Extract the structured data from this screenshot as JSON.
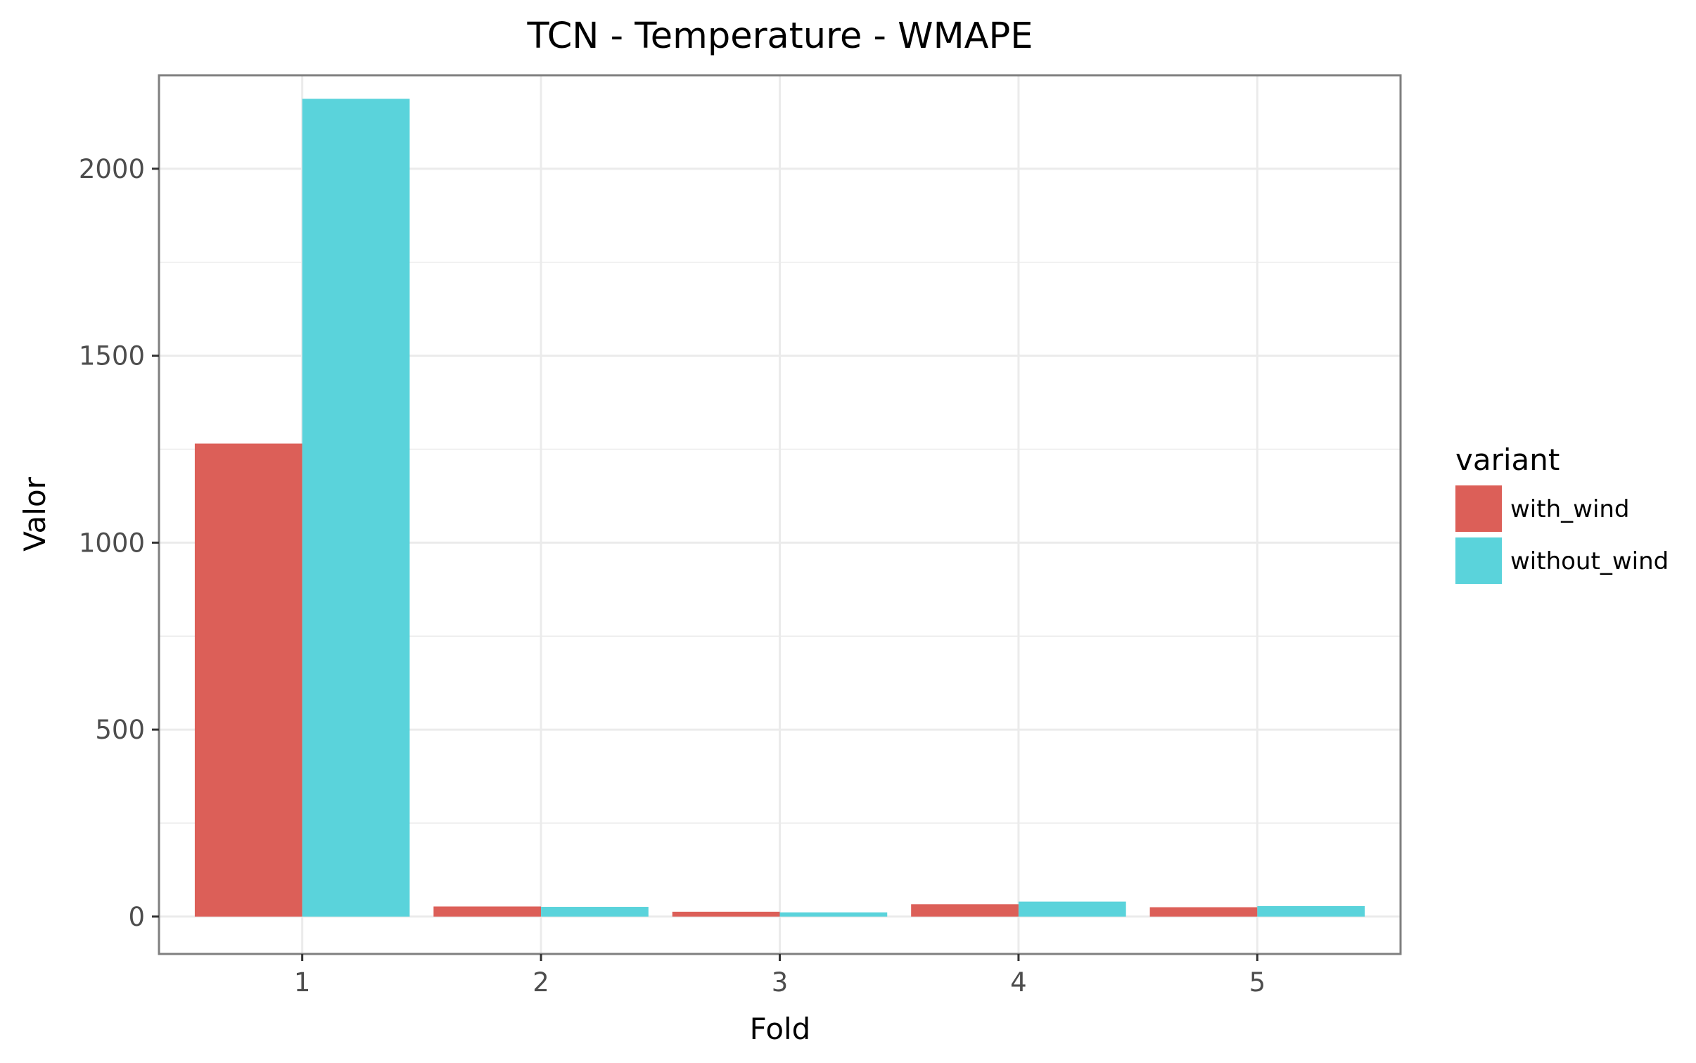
{
  "chart_data": {
    "type": "bar",
    "title": "TCN - Temperature - WMAPE",
    "xlabel": "Fold",
    "ylabel": "Valor",
    "categories": [
      "1",
      "2",
      "3",
      "4",
      "5"
    ],
    "ylim": [
      -100,
      2250
    ],
    "yticks": [
      0,
      500,
      1000,
      1500,
      2000
    ],
    "grid": true,
    "legend": {
      "title": "variant",
      "position": "right"
    },
    "series": [
      {
        "name": "with_wind",
        "color": "#dc5f58",
        "values": [
          1265,
          27,
          13,
          33,
          25
        ]
      },
      {
        "name": "without_wind",
        "color": "#5ad3db",
        "values": [
          2187,
          26,
          11,
          40,
          28
        ]
      }
    ]
  }
}
